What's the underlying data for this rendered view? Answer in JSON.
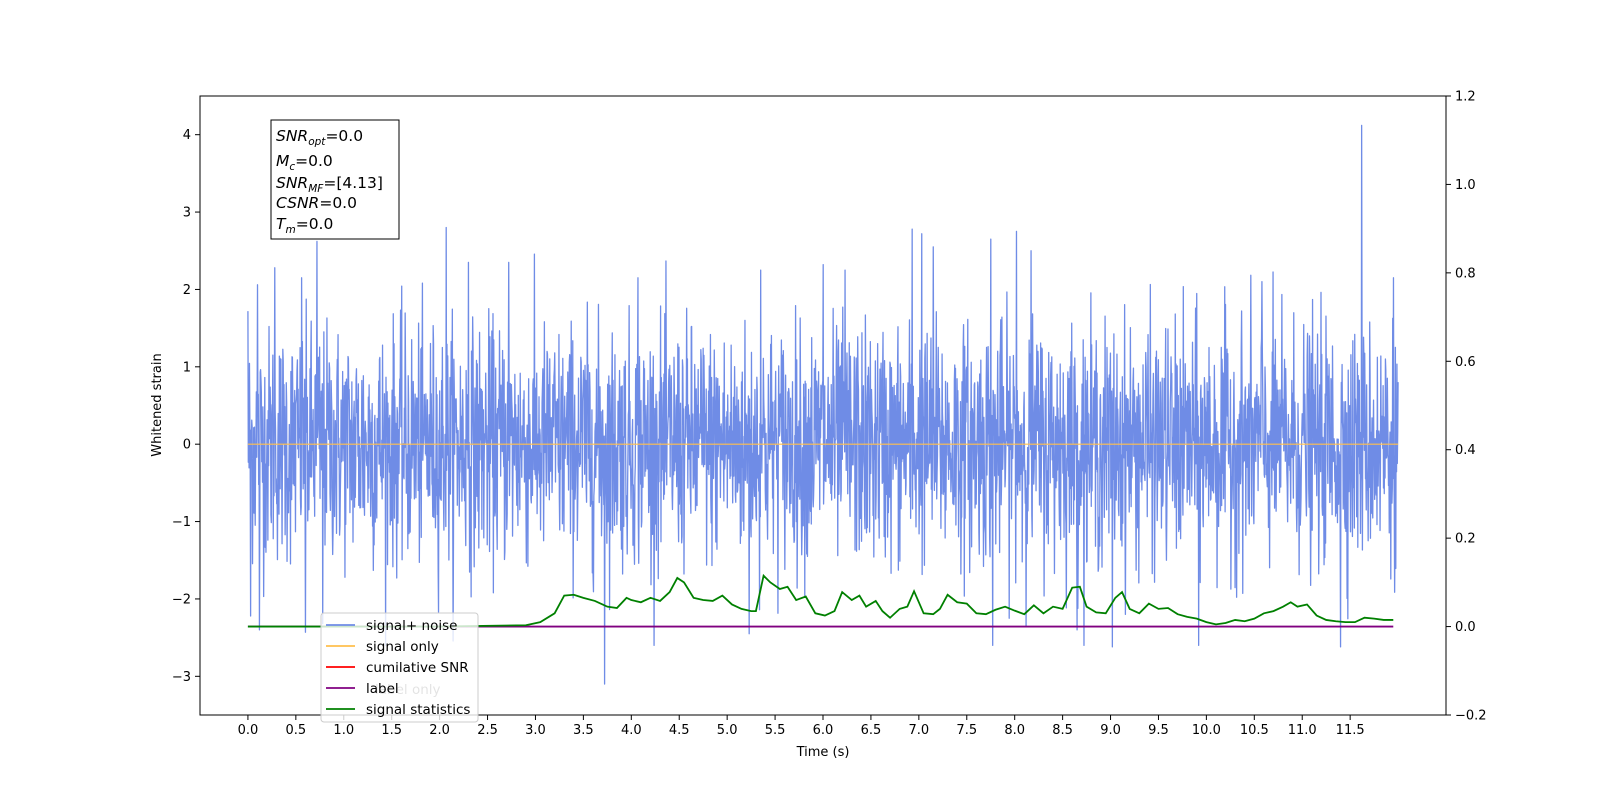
{
  "chart_data": {
    "type": "line",
    "title": "",
    "xlabel": "Time (s)",
    "ylabel": "Whitened strain",
    "ylabel_right": "",
    "xlim": [
      -0.5,
      12.5
    ],
    "ylim": [
      -3.5,
      4.5
    ],
    "ylim_right": [
      -0.2,
      1.2
    ],
    "x_ticks": [
      "0.0",
      "0.5",
      "1.0",
      "1.5",
      "2.0",
      "2.5",
      "3.0",
      "3.5",
      "4.0",
      "4.5",
      "5.0",
      "5.5",
      "6.0",
      "6.5",
      "7.0",
      "7.5",
      "8.0",
      "8.5",
      "9.0",
      "9.5",
      "10.0",
      "10.5",
      "11.0",
      "11.5"
    ],
    "y_ticks_left": [
      "−3",
      "−2",
      "−1",
      "0",
      "1",
      "2",
      "3",
      "4"
    ],
    "y_ticks_right": [
      "−0.2",
      "0.0",
      "0.2",
      "0.4",
      "0.6",
      "0.8",
      "1.0",
      "1.2"
    ],
    "grid": false,
    "legend_position": "lower-left",
    "series": [
      {
        "name": "signal+ noise",
        "axis": "left",
        "color": "#6f8ce6",
        "x_range": [
          0.0,
          12.0
        ],
        "noise_std": 0.75,
        "spikes": [
          {
            "x": 0.0,
            "y": 1.72
          },
          {
            "x": 0.03,
            "y": -2.22
          },
          {
            "x": 0.1,
            "y": 2.06
          },
          {
            "x": 0.12,
            "y": -2.4
          },
          {
            "x": 0.28,
            "y": 2.28
          },
          {
            "x": 0.56,
            "y": 2.15
          },
          {
            "x": 0.6,
            "y": -2.43
          },
          {
            "x": 0.72,
            "y": 2.62
          },
          {
            "x": 0.78,
            "y": -2.32
          },
          {
            "x": 2.07,
            "y": 2.8
          },
          {
            "x": 2.3,
            "y": 2.35
          },
          {
            "x": 2.72,
            "y": 2.35
          },
          {
            "x": 3.72,
            "y": -3.1
          },
          {
            "x": 4.07,
            "y": 2.15
          },
          {
            "x": 5.23,
            "y": -2.45
          },
          {
            "x": 5.35,
            "y": 2.25
          },
          {
            "x": 6.0,
            "y": 2.32
          },
          {
            "x": 6.23,
            "y": 2.25
          },
          {
            "x": 6.93,
            "y": 2.78
          },
          {
            "x": 7.03,
            "y": 2.72
          },
          {
            "x": 7.15,
            "y": 2.55
          },
          {
            "x": 7.75,
            "y": 2.65
          },
          {
            "x": 7.77,
            "y": -2.6
          },
          {
            "x": 8.02,
            "y": 2.75
          },
          {
            "x": 8.17,
            "y": 2.5
          },
          {
            "x": 8.65,
            "y": -2.4
          },
          {
            "x": 9.02,
            "y": -2.62
          },
          {
            "x": 9.92,
            "y": -2.6
          },
          {
            "x": 10.58,
            "y": 2.1
          },
          {
            "x": 11.4,
            "y": -2.62
          },
          {
            "x": 11.62,
            "y": 4.12
          },
          {
            "x": 11.95,
            "y": 2.15
          }
        ]
      },
      {
        "name": "signal only",
        "axis": "left",
        "color": "#ffbf4d",
        "x": [
          0.0,
          12.0
        ],
        "y": [
          0.0,
          0.0
        ]
      },
      {
        "name": "cumilative SNR",
        "axis": "right",
        "color": "#ff0000",
        "x": [],
        "y": []
      },
      {
        "name": "label",
        "axis": "right",
        "color": "#800080",
        "x": [
          0.0,
          11.95
        ],
        "y": [
          0.0,
          0.0
        ]
      },
      {
        "name": "signal statistics",
        "axis": "right",
        "color": "#008000",
        "x": [
          0.0,
          1.0,
          2.0,
          2.9,
          3.05,
          3.2,
          3.3,
          3.4,
          3.5,
          3.62,
          3.75,
          3.85,
          3.95,
          4.0,
          4.1,
          4.2,
          4.3,
          4.4,
          4.48,
          4.55,
          4.65,
          4.75,
          4.85,
          4.95,
          5.05,
          5.15,
          5.25,
          5.3,
          5.38,
          5.45,
          5.55,
          5.63,
          5.72,
          5.82,
          5.92,
          6.02,
          6.12,
          6.2,
          6.3,
          6.38,
          6.45,
          6.55,
          6.62,
          6.7,
          6.8,
          6.88,
          6.95,
          7.05,
          7.15,
          7.22,
          7.3,
          7.4,
          7.5,
          7.6,
          7.7,
          7.8,
          7.9,
          8.0,
          8.1,
          8.2,
          8.3,
          8.4,
          8.5,
          8.6,
          8.68,
          8.75,
          8.85,
          8.95,
          9.05,
          9.12,
          9.2,
          9.3,
          9.4,
          9.5,
          9.6,
          9.7,
          9.8,
          9.9,
          10.0,
          10.1,
          10.2,
          10.3,
          10.4,
          10.5,
          10.6,
          10.7,
          10.8,
          10.88,
          10.95,
          11.05,
          11.15,
          11.25,
          11.35,
          11.45,
          11.55,
          11.65,
          11.75,
          11.85,
          11.95
        ],
        "y": [
          0.0,
          0.0,
          0.0,
          0.003,
          0.01,
          0.03,
          0.07,
          0.072,
          0.065,
          0.058,
          0.045,
          0.042,
          0.065,
          0.06,
          0.055,
          0.065,
          0.058,
          0.078,
          0.11,
          0.1,
          0.065,
          0.06,
          0.058,
          0.07,
          0.05,
          0.04,
          0.035,
          0.035,
          0.115,
          0.1,
          0.085,
          0.09,
          0.06,
          0.068,
          0.03,
          0.025,
          0.035,
          0.078,
          0.06,
          0.07,
          0.045,
          0.058,
          0.035,
          0.02,
          0.04,
          0.045,
          0.08,
          0.03,
          0.028,
          0.04,
          0.072,
          0.055,
          0.052,
          0.03,
          0.028,
          0.038,
          0.045,
          0.036,
          0.028,
          0.048,
          0.03,
          0.045,
          0.04,
          0.088,
          0.09,
          0.045,
          0.032,
          0.03,
          0.065,
          0.078,
          0.04,
          0.03,
          0.052,
          0.04,
          0.042,
          0.028,
          0.022,
          0.018,
          0.01,
          0.005,
          0.008,
          0.015,
          0.012,
          0.018,
          0.03,
          0.035,
          0.045,
          0.055,
          0.045,
          0.05,
          0.025,
          0.015,
          0.012,
          0.01,
          0.01,
          0.02,
          0.018,
          0.015,
          0.015
        ]
      }
    ],
    "annotation": {
      "lines": [
        {
          "base": "SNR",
          "sub": "opt",
          "suffix": "=0.0"
        },
        {
          "base": "M",
          "sub": "c",
          "suffix": "=0.0"
        },
        {
          "base": "SNR",
          "sub": "MF",
          "suffix": "=[4.13]"
        },
        {
          "base": "CSNR",
          "sub": "",
          "suffix": "=0.0"
        },
        {
          "base": "T",
          "sub": "m",
          "suffix": "=0.0"
        }
      ]
    },
    "legend": [
      "signal+ noise",
      "signal only",
      "cumilative SNR",
      "label",
      "signal statistics"
    ],
    "legend_overlap_text": "label only"
  }
}
